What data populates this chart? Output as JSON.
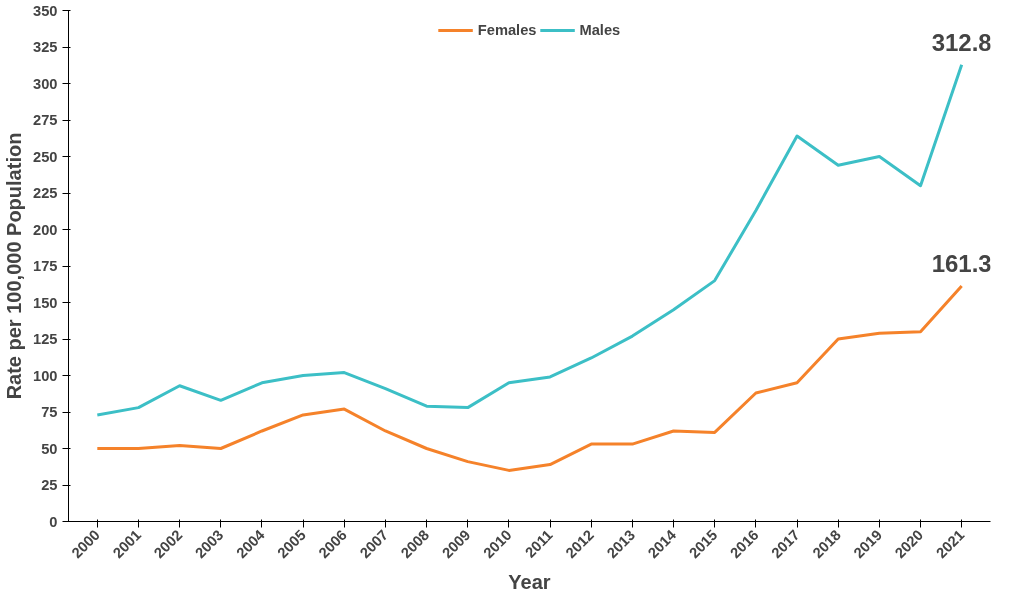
{
  "chart_data": {
    "type": "line",
    "xlabel": "Year",
    "ylabel": "Rate per 100,000 Population",
    "categories": [
      "2000",
      "2001",
      "2002",
      "2003",
      "2004",
      "2005",
      "2006",
      "2007",
      "2008",
      "2009",
      "2010",
      "2011",
      "2012",
      "2013",
      "2014",
      "2015",
      "2016",
      "2017",
      "2018",
      "2019",
      "2020",
      "2021"
    ],
    "series": [
      {
        "name": "Females",
        "color": "#f5822a",
        "values": [
          50,
          50,
          52,
          50,
          62,
          73,
          77,
          62,
          50,
          41,
          35,
          39,
          53,
          53,
          62,
          61,
          88,
          95,
          125,
          129,
          130,
          161.3
        ]
      },
      {
        "name": "Males",
        "color": "#3cbfc6",
        "values": [
          73,
          78,
          93,
          83,
          95,
          100,
          102,
          91,
          79,
          78,
          95,
          99,
          112,
          127,
          145,
          165,
          213,
          264,
          244,
          250,
          230,
          312.8
        ]
      }
    ],
    "ylim": [
      0,
      350
    ],
    "yticks": [
      0,
      25,
      50,
      75,
      100,
      125,
      150,
      175,
      200,
      225,
      250,
      275,
      300,
      325,
      350
    ],
    "annotations": [
      {
        "text": "312.8",
        "x": "2021",
        "y": 312.8
      },
      {
        "text": "161.3",
        "x": "2021",
        "y": 161.3
      }
    ],
    "legend": "top",
    "grid": false,
    "marker": "none",
    "line_style": "solid"
  }
}
